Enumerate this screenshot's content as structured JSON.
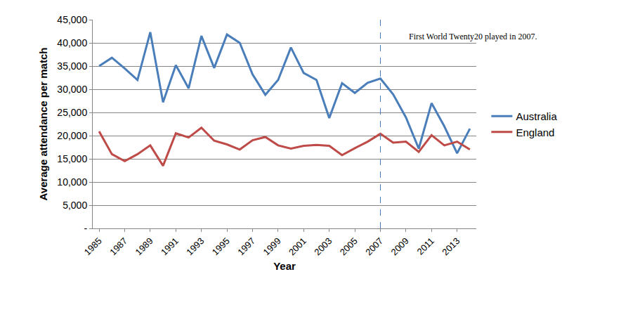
{
  "chart_data": {
    "type": "line",
    "x_label": "Year",
    "y_label": "Average attendance per match",
    "categories": [
      "1985",
      null,
      "1987",
      null,
      "1989",
      null,
      "1991",
      null,
      "1993",
      null,
      "1995",
      null,
      "1997",
      null,
      "1999",
      null,
      "2001",
      null,
      "2003",
      null,
      "2005",
      null,
      "2007",
      null,
      "2009",
      null,
      "2011",
      null,
      "2013",
      null
    ],
    "series": [
      {
        "name": "Australia",
        "color": "#4a7ebb",
        "values": [
          35000,
          36800,
          34500,
          32000,
          42300,
          27200,
          35200,
          30200,
          41500,
          34600,
          41800,
          40000,
          33200,
          28800,
          32000,
          39000,
          33500,
          32000,
          23800,
          31300,
          29200,
          31400,
          32300,
          28900,
          23900,
          17200,
          27000,
          22000,
          16200,
          21500
        ]
      },
      {
        "name": "England",
        "color": "#be4b48",
        "values": [
          20900,
          16000,
          14500,
          16000,
          17900,
          13500,
          20500,
          19600,
          21700,
          18900,
          18100,
          17000,
          19000,
          19700,
          17900,
          17200,
          17800,
          18000,
          17800,
          15800,
          17300,
          18700,
          20400,
          18500,
          18700,
          16500,
          20100,
          17900,
          18700,
          17000
        ]
      }
    ],
    "ylim": [
      0,
      45000
    ],
    "yticks": [
      {
        "value": 0,
        "label": "-"
      },
      {
        "value": 5000,
        "label": "5,000"
      },
      {
        "value": 10000,
        "label": "10,000"
      },
      {
        "value": 15000,
        "label": "15,000"
      },
      {
        "value": 20000,
        "label": "20,000"
      },
      {
        "value": 25000,
        "label": "25,000"
      },
      {
        "value": 30000,
        "label": "30,000"
      },
      {
        "value": 35000,
        "label": "35,000"
      },
      {
        "value": 40000,
        "label": "40,000"
      },
      {
        "value": 45000,
        "label": "45,000"
      }
    ],
    "grid": true,
    "legend": "right",
    "annotations": [
      {
        "text": "First World Twenty20 played in 2007.",
        "x": "2007",
        "line_style": "dashed"
      }
    ]
  }
}
